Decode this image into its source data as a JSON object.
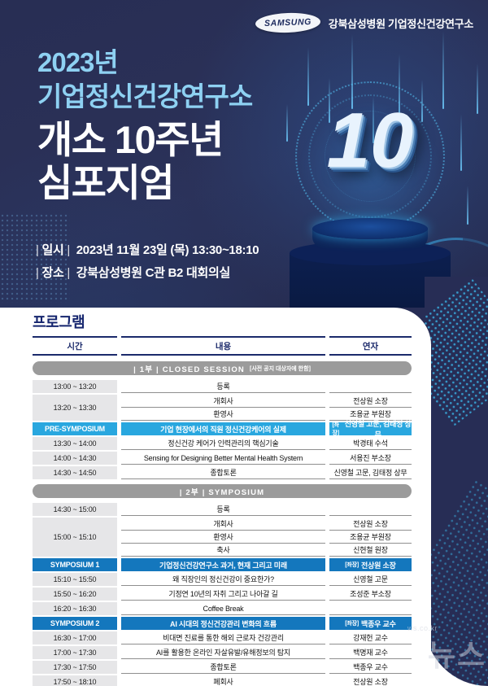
{
  "brand": {
    "logo_text": "SAMSUNG",
    "org_name": "강북삼성병원 기업정신건강연구소"
  },
  "hero": {
    "title_line1": "2023년",
    "title_line2": "기업정신건강연구소",
    "title_line3": "개소 10주년",
    "title_line4": "심포지엄",
    "anniversary_number": "10",
    "date_label": "일시",
    "date_value": "2023년 11월 23일 (목) 13:30~18:10",
    "venue_label": "장소",
    "venue_value": "강북삼성병원 C관 B2 대회의실",
    "pipe": "|"
  },
  "program": {
    "heading": "프로그램",
    "columns": [
      "시간",
      "내용",
      "연자"
    ],
    "sections": [
      {
        "label": "| 1부 | CLOSED SESSION",
        "note": "[사전 공지 대상자에 한함]",
        "rows": [
          {
            "type": "simple",
            "time": "13:00 ~ 13:20",
            "content": "등록",
            "speaker": ""
          },
          {
            "type": "group",
            "time": "13:20 ~ 13:30",
            "entries": [
              {
                "content": "개회사",
                "speaker": "전상원 소장"
              },
              {
                "content": "환영사",
                "speaker": "조용균 부원장"
              }
            ]
          },
          {
            "type": "highlight",
            "style": "cyan",
            "time_label": "PRE-SYMPOSIUM",
            "content": "기업 현장에서의 직원 정신건강케어의 실제",
            "chair_prefix": "[좌장]",
            "speaker": "신영철 고문, 김태정 상무"
          },
          {
            "type": "simple",
            "time": "13:30 ~ 14:00",
            "content": "정신건강 케어가 인력관리의 핵심기술",
            "speaker": "박경태 수석"
          },
          {
            "type": "simple",
            "time": "14:00 ~ 14:30",
            "content": "Sensing for Designing Better Mental Health System",
            "speaker": "서용진 부소장"
          },
          {
            "type": "simple",
            "time": "14:30 ~ 14:50",
            "content": "종합토론",
            "speaker": "신영철 고문, 김태정 상무"
          }
        ]
      },
      {
        "label": "| 2부 | SYMPOSIUM",
        "note": "",
        "rows": [
          {
            "type": "simple",
            "time": "14:30 ~ 15:00",
            "content": "등록",
            "speaker": ""
          },
          {
            "type": "group",
            "time": "15:00 ~ 15:10",
            "entries": [
              {
                "content": "개회사",
                "speaker": "전상원 소장"
              },
              {
                "content": "환영사",
                "speaker": "조용균 부원장"
              },
              {
                "content": "축사",
                "speaker": "신현철 원장"
              }
            ]
          },
          {
            "type": "highlight",
            "style": "blue",
            "time_label": "SYMPOSIUM 1",
            "content": "기업정신건강연구소 과거, 현재 그리고 미래",
            "chair_prefix": "[좌장]",
            "speaker": "전상원 소장"
          },
          {
            "type": "simple",
            "time": "15:10 ~ 15:50",
            "content": "왜 직장인의 정신건강이 중요한가?",
            "speaker": "신영철 고문"
          },
          {
            "type": "simple",
            "time": "15:50 ~ 16:20",
            "content": "기정연 10년의 자취 그리고 나아갈 길",
            "speaker": "조성준 부소장"
          },
          {
            "type": "simple",
            "time": "16:20 ~ 16:30",
            "content": "Coffee Break",
            "speaker": ""
          },
          {
            "type": "highlight",
            "style": "blue",
            "time_label": "SYMPOSIUM 2",
            "content": "AI 시대의 정신건강관리 변화의 흐름",
            "chair_prefix": "[좌장]",
            "speaker": "백종우 교수"
          },
          {
            "type": "simple",
            "time": "16:30 ~ 17:00",
            "content": "비대면 진료를 통한 해외 근로자 건강관리",
            "speaker": "강재헌 교수"
          },
          {
            "type": "simple",
            "time": "17:00 ~ 17:30",
            "content": "AI를 활용한 온라인 자살유발/유해정보의 탐지",
            "speaker": "백명재 교수"
          },
          {
            "type": "simple",
            "time": "17:30 ~ 17:50",
            "content": "종합토론",
            "speaker": "백종우 교수"
          },
          {
            "type": "simple",
            "time": "17:50 ~ 18:10",
            "content": "폐회사",
            "speaker": "전상원 소장"
          }
        ]
      }
    ]
  },
  "watermark": {
    "small": "ws.co.kr",
    "large": "뉴스"
  },
  "colors": {
    "hero_navy": "#272d55",
    "title_light_blue": "#8ed1f2",
    "highlight_cyan": "#29a7df",
    "highlight_blue": "#1477bd",
    "pill_gray": "#9b9b9b",
    "heading_navy": "#15256e"
  }
}
